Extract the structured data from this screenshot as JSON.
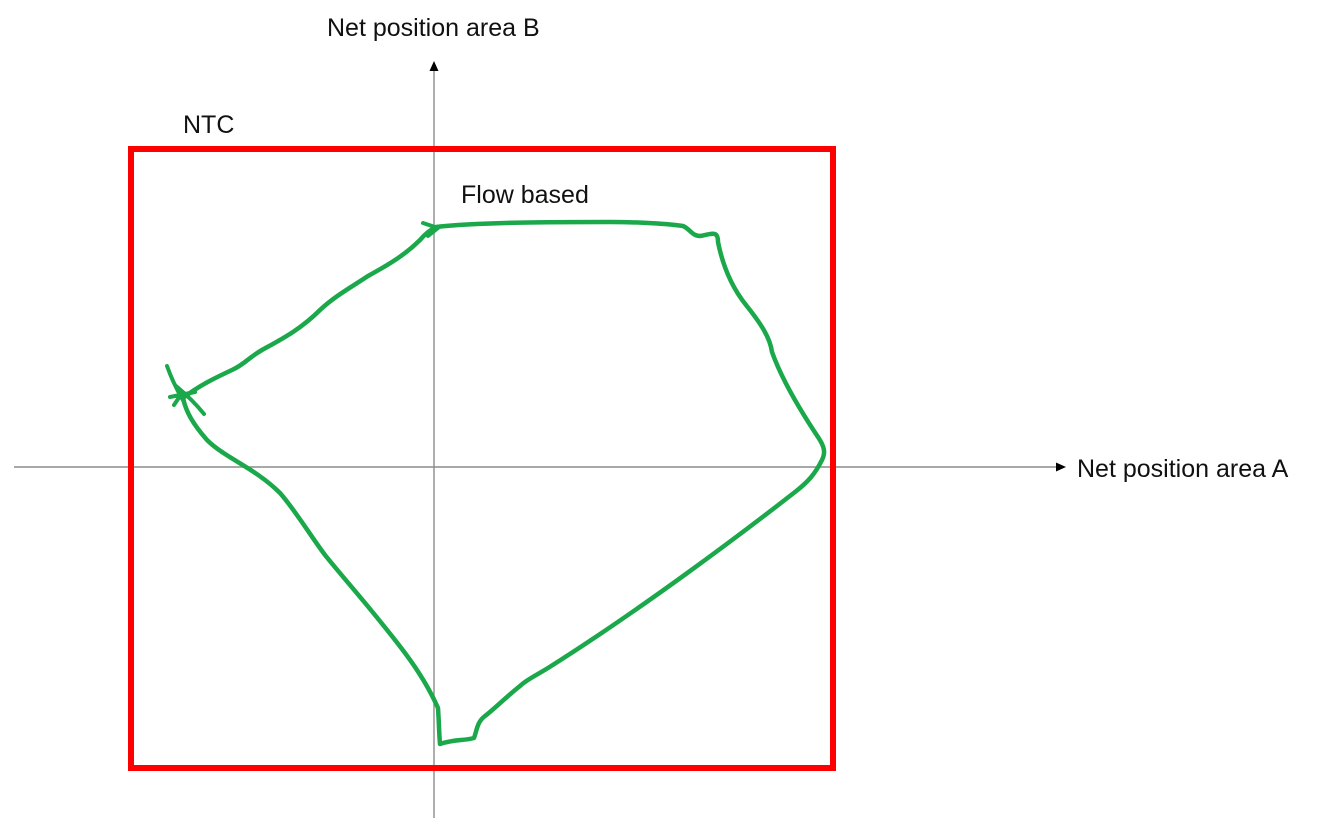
{
  "labels": {
    "y_axis": "Net position area B",
    "x_axis": "Net position area A",
    "ntc": "NTC",
    "flow_based": "Flow based"
  },
  "colors": {
    "axis": "#8c8c8c",
    "arrowhead": "#000000",
    "ntc_box": "#ff0000",
    "flow_based_curve": "#1aa84a",
    "text": "#111111",
    "background": "#ffffff"
  }
}
